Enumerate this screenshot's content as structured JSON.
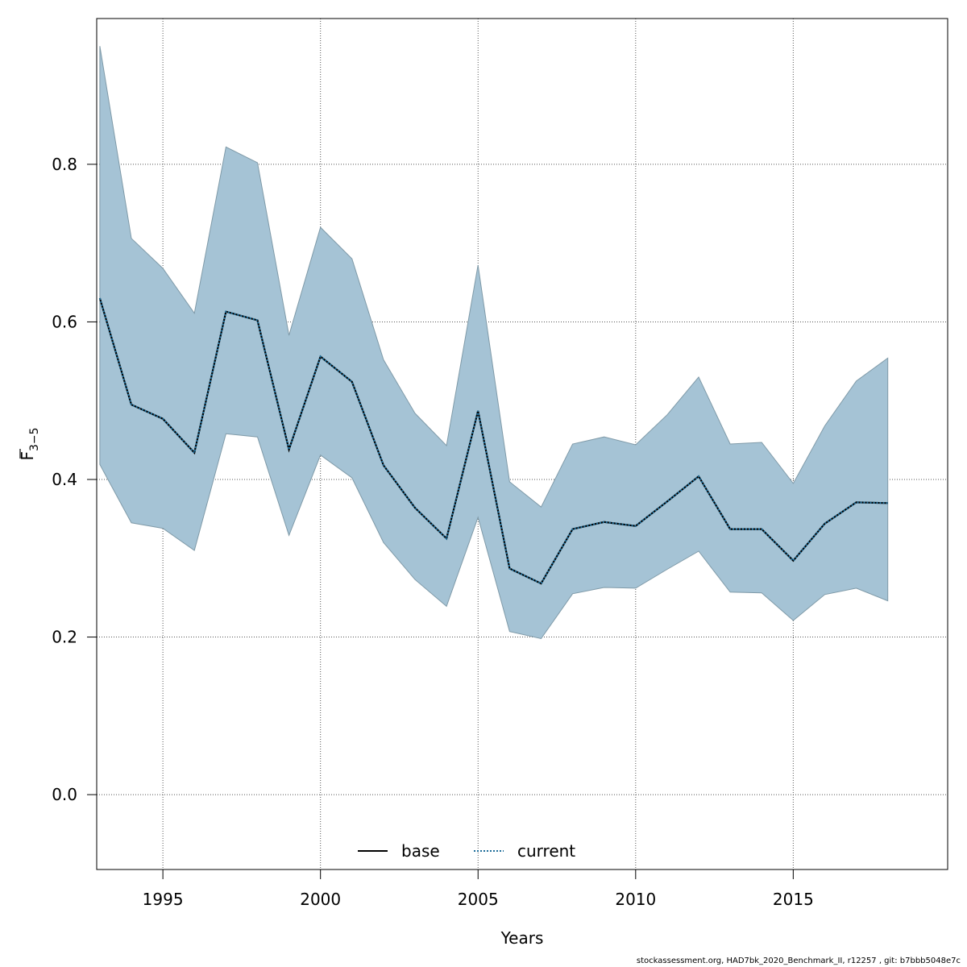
{
  "chart_data": {
    "type": "area",
    "xlabel": "Years",
    "ylabel": "F",
    "ylabel_subscript": "3−5",
    "xlim": [
      1992.9,
      2019.9
    ],
    "ylim": [
      -0.095,
      0.985
    ],
    "x_ticks": [
      1995,
      2000,
      2005,
      2010,
      2015
    ],
    "y_ticks": [
      0.0,
      0.2,
      0.4,
      0.6,
      0.8
    ],
    "x_tick_labels": [
      "1995",
      "2000",
      "2005",
      "2010",
      "2015"
    ],
    "y_tick_labels": [
      "0.0",
      "0.2",
      "0.4",
      "0.6",
      "0.8"
    ],
    "grid": true,
    "legend_position": "bottom-center",
    "band_color": "#a5c3d5",
    "x": [
      1993,
      1994,
      1995,
      1996,
      1997,
      1998,
      1999,
      2000,
      2001,
      2002,
      2003,
      2004,
      2005,
      2006,
      2007,
      2008,
      2009,
      2010,
      2011,
      2012,
      2013,
      2014,
      2015,
      2016,
      2017,
      2018
    ],
    "series": [
      {
        "name": "current",
        "style": "dotted",
        "color": "#1f6e9a",
        "values": [
          0.63,
          0.495,
          0.477,
          0.434,
          0.613,
          0.602,
          0.438,
          0.556,
          0.524,
          0.418,
          0.364,
          0.325,
          0.487,
          0.287,
          0.268,
          0.337,
          0.346,
          0.341,
          0.372,
          0.404,
          0.337,
          0.337,
          0.297,
          0.344,
          0.371,
          0.37
        ]
      },
      {
        "name": "base",
        "style": "solid",
        "color": "#000000",
        "values": [
          0.63,
          0.495,
          0.477,
          0.434,
          0.613,
          0.602,
          0.438,
          0.556,
          0.524,
          0.418,
          0.364,
          0.325,
          0.487,
          0.287,
          0.268,
          0.337,
          0.346,
          0.341,
          0.372,
          0.404,
          0.337,
          0.337,
          0.297,
          0.344,
          0.371,
          0.37
        ]
      }
    ],
    "band": {
      "upper": [
        0.95,
        0.706,
        0.668,
        0.611,
        0.822,
        0.802,
        0.583,
        0.72,
        0.68,
        0.552,
        0.484,
        0.443,
        0.672,
        0.397,
        0.365,
        0.445,
        0.454,
        0.444,
        0.482,
        0.53,
        0.445,
        0.447,
        0.395,
        0.468,
        0.525,
        0.554
      ],
      "lower": [
        0.419,
        0.345,
        0.338,
        0.31,
        0.458,
        0.454,
        0.329,
        0.431,
        0.402,
        0.32,
        0.273,
        0.239,
        0.352,
        0.207,
        0.198,
        0.255,
        0.263,
        0.262,
        0.286,
        0.309,
        0.257,
        0.256,
        0.221,
        0.254,
        0.262,
        0.246
      ]
    }
  },
  "legend": {
    "items": [
      {
        "label": "base",
        "style": "solid"
      },
      {
        "label": "current",
        "style": "dotted"
      }
    ]
  },
  "footer": {
    "text": "stockassessment.org, HAD7bk_2020_Benchmark_II, r12257 , git: b7bbb5048e7c"
  }
}
